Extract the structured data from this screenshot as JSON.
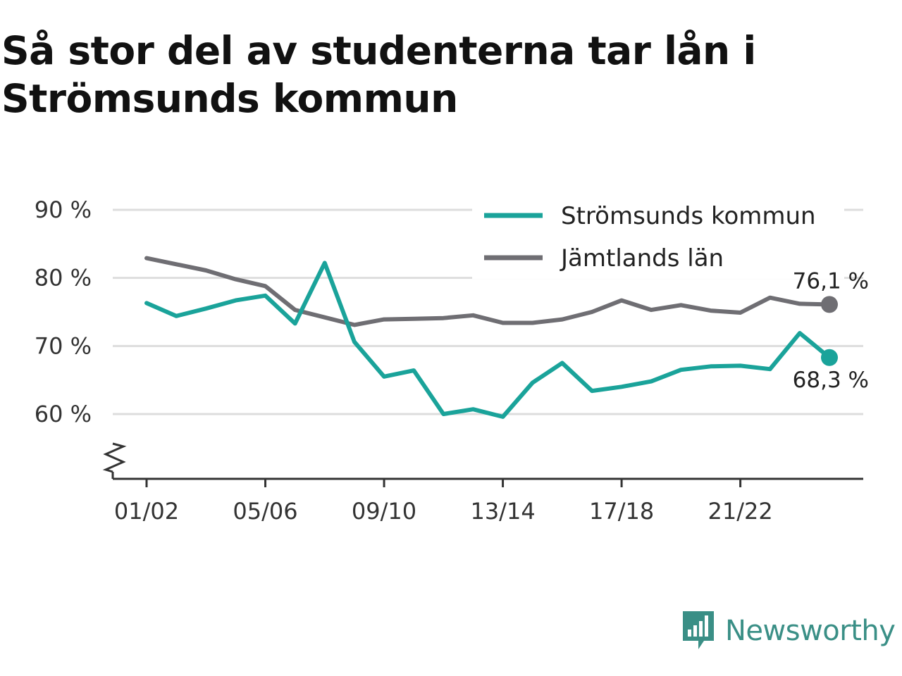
{
  "title": "Så stor del av studenterna tar lån i Strömsunds kommun",
  "brand": {
    "name": "Newsworthy",
    "icon": "newsworthy-logo-icon"
  },
  "colors": {
    "primary": "#1aa39a",
    "secondary": "#6f6e73",
    "grid": "#dddddd",
    "axis": "#333333"
  },
  "chart_data": {
    "type": "line",
    "categories": [
      "01/02",
      "02/03",
      "03/04",
      "04/05",
      "05/06",
      "06/07",
      "07/08",
      "08/09",
      "09/10",
      "10/11",
      "11/12",
      "12/13",
      "13/14",
      "14/15",
      "15/16",
      "16/17",
      "17/18",
      "18/19",
      "19/20",
      "20/21",
      "21/22",
      "22/23",
      "23/24",
      "24/25"
    ],
    "tick_labels": [
      "01/02",
      "05/06",
      "09/10",
      "13/14",
      "17/18",
      "21/22"
    ],
    "y_ticks": [
      60,
      70,
      80,
      90
    ],
    "y_tick_labels": [
      "60 %",
      "70 %",
      "80 %",
      "90 %"
    ],
    "ylim": [
      51,
      92
    ],
    "y_axis_break": true,
    "grid": true,
    "legend_position": "top-right",
    "series": [
      {
        "name": "Strömsunds kommun",
        "color": "#1aa39a",
        "values": [
          76.3,
          74.4,
          75.5,
          76.7,
          77.4,
          73.3,
          82.2,
          70.6,
          65.5,
          66.4,
          60.0,
          60.7,
          59.6,
          64.6,
          67.5,
          63.4,
          64.0,
          64.8,
          66.5,
          67.0,
          67.1,
          66.6,
          71.9,
          68.3
        ],
        "end_label": "68,3 %"
      },
      {
        "name": "Jämtlands län",
        "color": "#6f6e73",
        "values": [
          82.9,
          82.0,
          81.1,
          79.8,
          78.8,
          75.3,
          74.2,
          73.1,
          73.9,
          74.0,
          74.1,
          74.5,
          73.4,
          73.4,
          73.9,
          75.0,
          76.7,
          75.3,
          76.0,
          75.2,
          74.9,
          77.1,
          76.2,
          76.1
        ],
        "end_label": "76,1 %"
      }
    ]
  }
}
